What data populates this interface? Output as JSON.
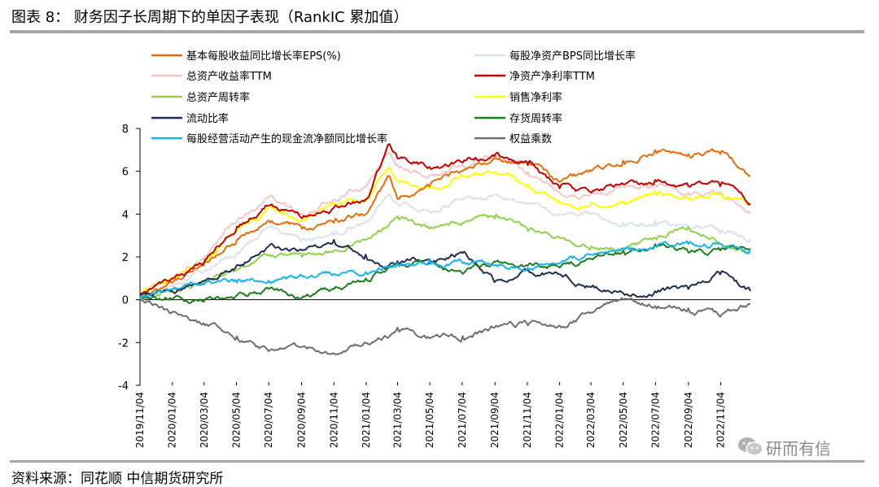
{
  "header": {
    "title": "图表 8：   财务因子长周期下的单因子表现（RankIC 累加值）"
  },
  "footer": {
    "source": "资料来源：同花顺    中信期货研究所"
  },
  "watermark": {
    "text": "研而有信",
    "icon": "wechat-icon"
  },
  "chart_data": {
    "type": "line",
    "title": "",
    "xlabel": "",
    "ylabel": "",
    "ylim": [
      -4,
      8
    ],
    "yticks": [
      -4,
      -2,
      0,
      2,
      4,
      6,
      8
    ],
    "xlim": [
      "2019-11-04",
      "2022-12-30"
    ],
    "xticks": [
      "2019/11/04",
      "2020/01/04",
      "2020/03/04",
      "2020/05/04",
      "2020/07/04",
      "2020/09/04",
      "2020/11/04",
      "2021/01/04",
      "2021/03/04",
      "2021/05/04",
      "2021/07/04",
      "2021/09/04",
      "2021/11/04",
      "2022/01/04",
      "2022/03/04",
      "2022/05/04",
      "2022/07/04",
      "2022/09/04",
      "2022/11/04"
    ],
    "grid": false,
    "legend": "top",
    "x": [
      "2019-11-04",
      "2020-01-04",
      "2020-03-04",
      "2020-05-04",
      "2020-07-04",
      "2020-09-04",
      "2020-11-04",
      "2021-01-04",
      "2021-02-15",
      "2021-03-04",
      "2021-05-04",
      "2021-07-04",
      "2021-09-04",
      "2021-11-04",
      "2022-01-04",
      "2022-03-04",
      "2022-05-04",
      "2022-07-04",
      "2022-09-04",
      "2022-11-04",
      "2022-12-30"
    ],
    "series": [
      {
        "name": "基本每股收益同比增长率EPS(%)",
        "color": "#e46c0a",
        "values": [
          0.2,
          0.8,
          1.6,
          2.8,
          3.7,
          3.3,
          3.6,
          4.0,
          5.7,
          4.7,
          5.3,
          6.0,
          6.6,
          6.4,
          5.5,
          6.0,
          6.5,
          7.0,
          6.8,
          6.8,
          5.8
        ]
      },
      {
        "name": "每股净资产BPS同比增长率",
        "color": "#d9e1ee",
        "values": [
          0.1,
          0.7,
          1.3,
          2.2,
          3.4,
          2.8,
          3.0,
          3.6,
          4.9,
          4.5,
          4.1,
          4.7,
          4.9,
          4.5,
          4.0,
          4.0,
          3.6,
          3.7,
          3.4,
          3.1,
          2.8
        ]
      },
      {
        "name": "总资产收益率TTM",
        "color": "#f4c7c7",
        "values": [
          0.3,
          1.0,
          1.9,
          3.6,
          4.8,
          4.0,
          4.7,
          5.3,
          7.0,
          6.3,
          5.8,
          6.3,
          6.8,
          6.0,
          5.0,
          5.0,
          5.3,
          5.4,
          5.0,
          5.0,
          4.0
        ]
      },
      {
        "name": "净资产净利率TTM",
        "color": "#c00000",
        "values": [
          0.3,
          1.0,
          1.7,
          3.4,
          4.4,
          3.8,
          4.3,
          4.7,
          7.2,
          6.6,
          6.2,
          6.4,
          6.7,
          6.3,
          5.2,
          5.0,
          5.4,
          5.6,
          5.3,
          5.3,
          4.5
        ]
      },
      {
        "name": "总资产周转率",
        "color": "#92d050",
        "values": [
          0.1,
          0.4,
          0.8,
          1.4,
          2.1,
          2.0,
          2.3,
          2.8,
          3.4,
          3.9,
          3.3,
          3.6,
          3.8,
          3.2,
          2.9,
          2.5,
          2.4,
          2.9,
          3.4,
          2.6,
          2.2
        ]
      },
      {
        "name": "销售净利率",
        "color": "#ffff00",
        "values": [
          0.2,
          1.0,
          1.7,
          3.2,
          4.3,
          3.8,
          4.4,
          4.6,
          6.4,
          5.6,
          5.2,
          5.8,
          6.0,
          5.4,
          4.6,
          4.5,
          4.6,
          5.1,
          4.8,
          4.9,
          4.4
        ]
      },
      {
        "name": "流动比率",
        "color": "#1f2d4e",
        "values": [
          0.2,
          0.4,
          0.9,
          1.6,
          2.5,
          2.3,
          2.8,
          2.1,
          1.6,
          1.8,
          1.9,
          2.2,
          0.8,
          1.4,
          1.2,
          0.6,
          0.3,
          0.4,
          0.5,
          1.2,
          0.4
        ]
      },
      {
        "name": "存货周转率",
        "color": "#1e7b1e",
        "values": [
          0.1,
          0.0,
          -0.1,
          0.2,
          0.5,
          0.1,
          0.5,
          1.0,
          1.6,
          1.7,
          1.7,
          1.2,
          1.8,
          1.6,
          1.5,
          1.9,
          2.3,
          2.6,
          2.2,
          2.3,
          2.4
        ]
      },
      {
        "name": "每股经营活动产生的现金流净额同比增长率",
        "color": "#1ab2e8",
        "values": [
          0.1,
          0.5,
          0.7,
          0.8,
          0.9,
          1.1,
          1.2,
          1.3,
          1.6,
          1.7,
          1.9,
          1.7,
          1.6,
          1.5,
          1.7,
          2.1,
          2.4,
          2.5,
          2.6,
          2.6,
          2.4
        ]
      },
      {
        "name": "权益乘数",
        "color": "#6d6d6d",
        "values": [
          0.0,
          -0.6,
          -1.1,
          -1.7,
          -2.4,
          -2.2,
          -2.5,
          -2.0,
          -1.6,
          -1.3,
          -1.8,
          -1.7,
          -1.3,
          -1.2,
          -1.2,
          -0.6,
          0.0,
          -0.3,
          -0.4,
          -0.8,
          -0.2
        ]
      }
    ]
  }
}
